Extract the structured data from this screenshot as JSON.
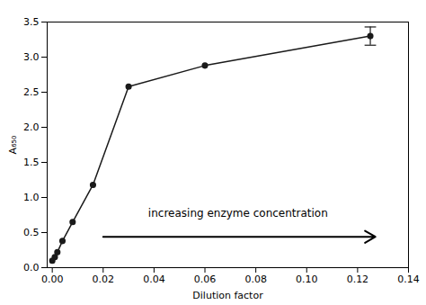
{
  "chart_data": {
    "type": "line",
    "x": [
      0.0,
      0.001,
      0.002,
      0.004,
      0.008,
      0.016,
      0.03,
      0.06,
      0.125
    ],
    "values": [
      0.1,
      0.15,
      0.22,
      0.38,
      0.65,
      1.18,
      2.58,
      2.88,
      3.3
    ],
    "yerr": [
      null,
      null,
      null,
      null,
      null,
      null,
      null,
      null,
      0.13
    ],
    "color": "#1a1a1a",
    "marker": "circle",
    "x_label": "Dilution factor",
    "y_label": "A₆₅₀",
    "xlim": [
      -0.002,
      0.14
    ],
    "ylim": [
      0.0,
      3.5
    ],
    "xticks": [
      {
        "value": 0.0,
        "label": "0.00"
      },
      0.02,
      0.04,
      0.06,
      0.08,
      {
        "value": 0.1,
        "label": "0.10"
      },
      0.12,
      0.14
    ],
    "yticks": [
      {
        "value": 0.0,
        "label": "0.0"
      },
      0.5,
      {
        "value": 1.0,
        "label": "1.0"
      },
      1.5,
      {
        "value": 2.0,
        "label": "2.0"
      },
      2.5,
      {
        "value": 3.0,
        "label": "3.0"
      },
      3.5
    ],
    "grid": false,
    "annotations": [
      {
        "text": "increasing enzyme concentration",
        "x": 0.073,
        "y": 0.72
      }
    ],
    "arrow": {
      "x_start": 0.02,
      "x_end": 0.127,
      "y": 0.44
    }
  }
}
